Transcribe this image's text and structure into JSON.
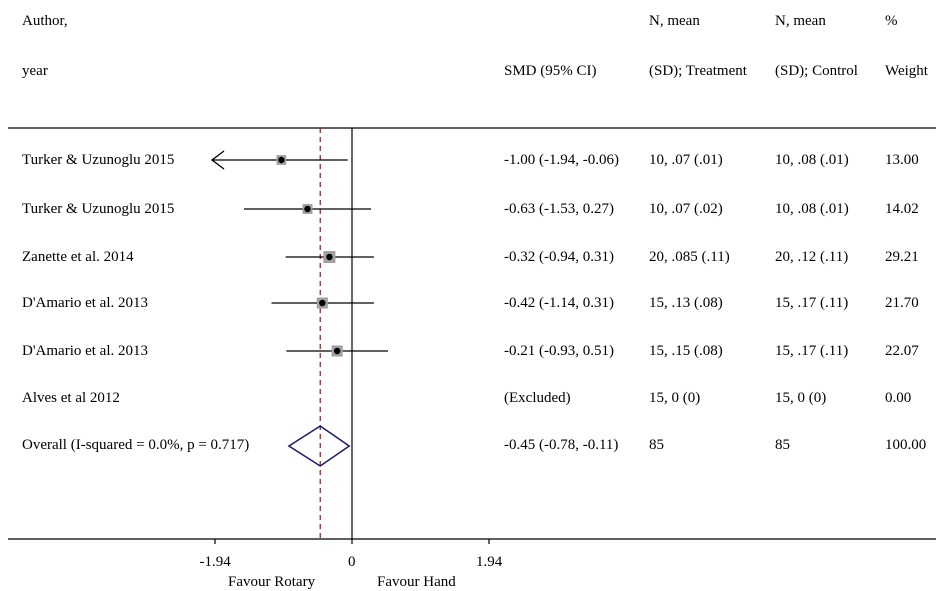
{
  "headers": {
    "author_line1": "Author,",
    "author_line2": "year",
    "smd": "SMD (95% CI)",
    "treat_line1": "N, mean",
    "treat_line2": "(SD); Treatment",
    "control_line1": "N, mean",
    "control_line2": "(SD); Control",
    "weight_line1": "%",
    "weight_line2": "Weight"
  },
  "rows": [
    {
      "study": "Turker & Uzunoglu 2015",
      "smd": -1.0,
      "lo": -1.94,
      "hi": -0.06,
      "ci_text": "-1.00 (-1.94, -0.06)",
      "treatment": "10, .07 (.01)",
      "control": "10, .08 (.01)",
      "weight": "13.00",
      "weight_value": 13.0,
      "arrow_left": true
    },
    {
      "study": "Turker & Uzunoglu 2015",
      "smd": -0.63,
      "lo": -1.53,
      "hi": 0.27,
      "ci_text": "-0.63 (-1.53, 0.27)",
      "treatment": "10, .07 (.02)",
      "control": "10, .08 (.01)",
      "weight": "14.02",
      "weight_value": 14.02,
      "arrow_left": false
    },
    {
      "study": "Zanette et al. 2014",
      "smd": -0.32,
      "lo": -0.94,
      "hi": 0.31,
      "ci_text": "-0.32 (-0.94, 0.31)",
      "treatment": "20, .085 (.11)",
      "control": "20, .12 (.11)",
      "weight": "29.21",
      "weight_value": 29.21,
      "arrow_left": false
    },
    {
      "study": "D'Amario et al. 2013",
      "smd": -0.42,
      "lo": -1.14,
      "hi": 0.31,
      "ci_text": "-0.42 (-1.14, 0.31)",
      "treatment": "15, .13 (.08)",
      "control": "15, .17 (.11)",
      "weight": "21.70",
      "weight_value": 21.7,
      "arrow_left": false
    },
    {
      "study": "D'Amario et al. 2013",
      "smd": -0.21,
      "lo": -0.93,
      "hi": 0.51,
      "ci_text": "-0.21 (-0.93, 0.51)",
      "treatment": "15, .15 (.08)",
      "control": "15, .17 (.11)",
      "weight": "22.07",
      "weight_value": 22.07,
      "arrow_left": false
    },
    {
      "study": "Alves et al 2012",
      "smd": null,
      "lo": null,
      "hi": null,
      "ci_text": "(Excluded)",
      "treatment": "15, 0 (0)",
      "control": "15, 0 (0)",
      "weight": "0.00",
      "weight_value": 0.0,
      "arrow_left": false
    }
  ],
  "overall": {
    "label": "Overall  (I-squared = 0.0%, p = 0.717)",
    "smd": -0.45,
    "lo": -0.78,
    "hi": -0.11,
    "ci_text": "-0.45 (-0.78, -0.11)",
    "treatment": "85",
    "control": "85",
    "weight": "100.00"
  },
  "chart_data": {
    "type": "forest",
    "x_ticks": [
      -1.94,
      0,
      1.94
    ],
    "x_tick_labels": [
      "-1.94",
      "0",
      "1.94"
    ],
    "xlim": [
      -1.94,
      1.94
    ],
    "reference_line": 0,
    "overall_line": -0.45,
    "favour_left": "Favour Rotary",
    "favour_right": "Favour Hand",
    "colors": {
      "diamond": "#1a1a6e",
      "overall_line": "#8b1a1a",
      "box": "#a0a0a0",
      "line": "#000000"
    }
  }
}
